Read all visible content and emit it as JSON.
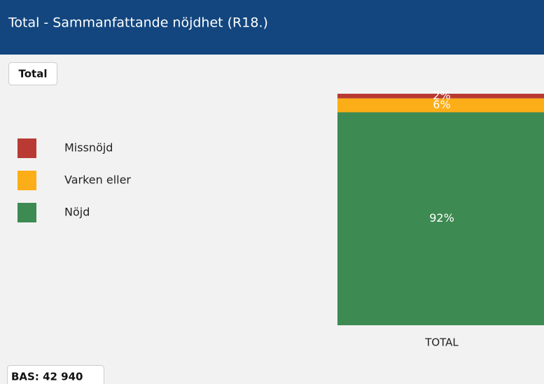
{
  "chart_data": {
    "type": "stacked_bar",
    "title": "Total - Sammanfattande nöjdhet (R18.)",
    "categories": [
      "TOTAL"
    ],
    "series": [
      {
        "name": "Missnöjd",
        "color": "#b83a32",
        "values": [
          2
        ],
        "value_labels": [
          "2%"
        ]
      },
      {
        "name": "Varken eller",
        "color": "#fbae17",
        "values": [
          6
        ],
        "value_labels": [
          "6%"
        ]
      },
      {
        "name": "Nöjd",
        "color": "#3d8a52",
        "values": [
          92
        ],
        "value_labels": [
          "92%"
        ]
      }
    ],
    "ylim": [
      0,
      100
    ]
  },
  "tab": "Total",
  "base_label": "BAS: 42 940"
}
